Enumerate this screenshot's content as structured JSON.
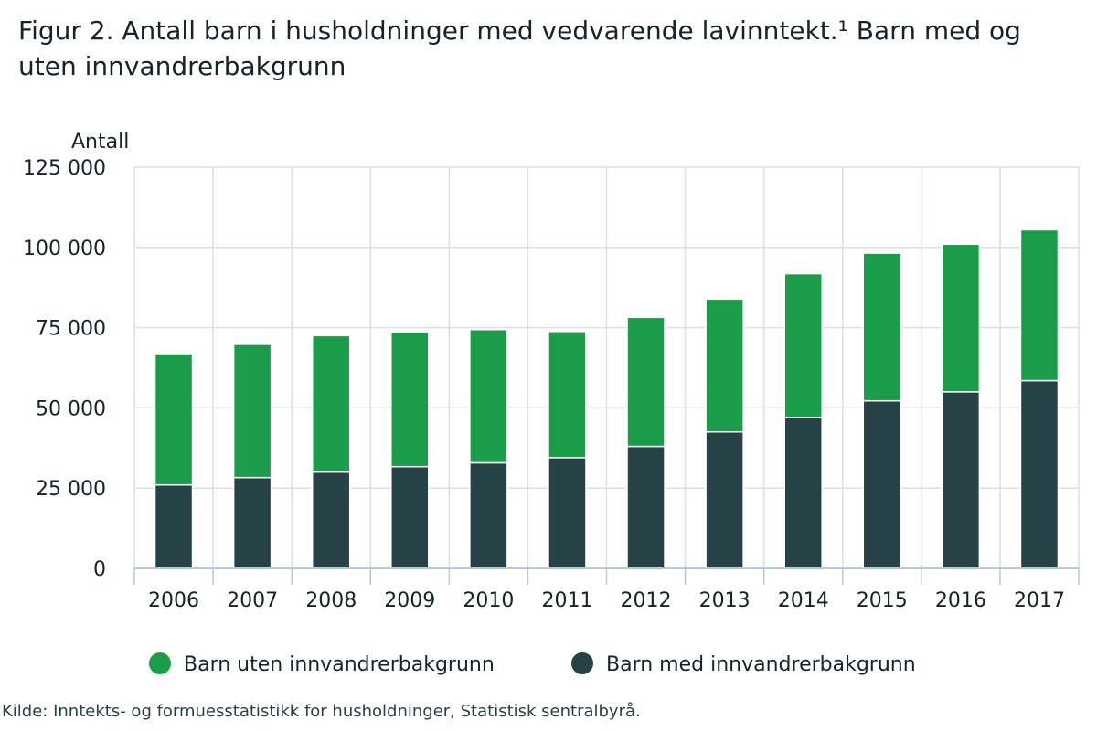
{
  "title": "Figur 2. Antall barn i husholdninger med vedvarende lavinntekt.¹ Barn med og uten innvandrerbakgrunn",
  "source": "Kilde: Inntekts- og formuesstatistikk for husholdninger, Statistisk sentralbyrå.",
  "chart_data": {
    "type": "bar",
    "stacked": true,
    "title": "Figur 2. Antall barn i husholdninger med vedvarende lavinntekt.¹ Barn med og uten innvandrerbakgrunn",
    "xlabel": "",
    "ylabel": "Antall",
    "ylim": [
      0,
      125000
    ],
    "yticks": [
      0,
      25000,
      50000,
      75000,
      100000,
      125000
    ],
    "ytick_labels": [
      "0",
      "25 000",
      "50 000",
      "75 000",
      "100 000",
      "125 000"
    ],
    "grid": true,
    "legend_position": "bottom-center",
    "categories": [
      "2006",
      "2007",
      "2008",
      "2009",
      "2010",
      "2011",
      "2012",
      "2013",
      "2014",
      "2015",
      "2016",
      "2017"
    ],
    "series": [
      {
        "name": "Barn med innvandrerbakgrunn",
        "color": "#274247",
        "values": [
          26000,
          28300,
          30000,
          31700,
          32900,
          34500,
          38000,
          42500,
          47000,
          52200,
          55000,
          58500
        ]
      },
      {
        "name": "Barn uten innvandrerbakgrunn",
        "color": "#1a9d49",
        "values": [
          40900,
          41500,
          42500,
          42000,
          41500,
          39300,
          40200,
          41400,
          44800,
          46000,
          46000,
          47000
        ]
      }
    ],
    "legend_order": [
      "Barn uten innvandrerbakgrunn",
      "Barn med innvandrerbakgrunn"
    ]
  }
}
